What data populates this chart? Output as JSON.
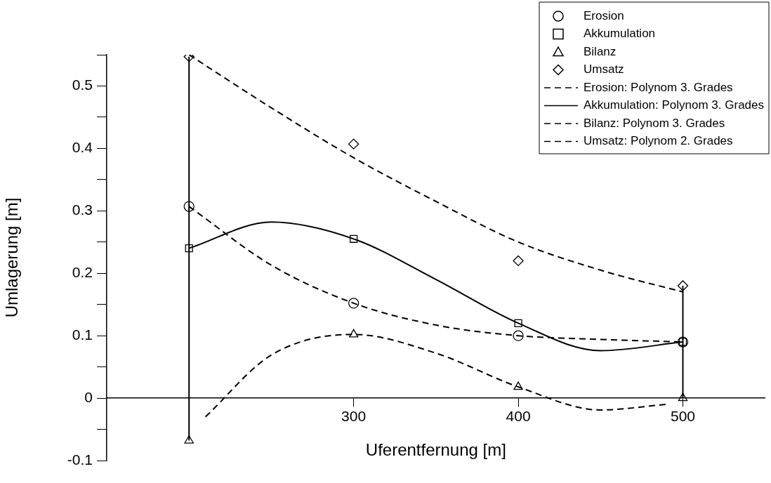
{
  "chart_data": {
    "type": "scatter",
    "xlabel": "Uferentfernung [m]",
    "ylabel": "Umlagerung [m]",
    "xlim": [
      150,
      550
    ],
    "xticks": [
      300,
      400,
      500
    ],
    "ylim": [
      -0.1,
      0.55
    ],
    "yticks": [
      -0.1,
      {
        "value": -0.05,
        "label": null
      },
      0,
      {
        "value": 0.05,
        "label": null
      },
      0.1,
      {
        "value": 0.15,
        "label": null
      },
      0.2,
      {
        "value": 0.25,
        "label": null
      },
      0.3,
      {
        "value": 0.35,
        "label": null
      },
      0.4,
      {
        "value": 0.45,
        "label": null
      },
      0.5,
      {
        "value": 0.55,
        "label": null
      }
    ],
    "grid": false,
    "legend": "top right",
    "series": [
      {
        "name": "Erosion",
        "type": "scatter",
        "marker": "circle",
        "color": "#000000",
        "x": [
          200,
          300,
          400,
          500
        ],
        "values": [
          0.307,
          0.152,
          0.1,
          0.09
        ]
      },
      {
        "name": "Akkumulation",
        "type": "scatter",
        "marker": "square",
        "color": "#000000",
        "x": [
          200,
          300,
          400,
          500
        ],
        "values": [
          0.24,
          0.255,
          0.12,
          0.09
        ]
      },
      {
        "name": "Bilanz",
        "type": "scatter",
        "marker": "triangle",
        "color": "#000000",
        "x": [
          200,
          300,
          400,
          500
        ],
        "values": [
          -0.068,
          0.102,
          0.018,
          0
        ]
      },
      {
        "name": "Umsatz",
        "type": "scatter",
        "marker": "diamond",
        "color": "#000000",
        "x": [
          200,
          300,
          400,
          500
        ],
        "values": [
          0.547,
          0.407,
          0.22,
          0.18
        ]
      },
      {
        "name": "Erosion: Polynom 3. Grades",
        "type": "line",
        "marker": "none",
        "line_style": "dashed",
        "color": "#000000",
        "x": [
          200,
          250,
          300,
          350,
          400,
          450,
          500
        ],
        "values": [
          0.307,
          0.213,
          0.152,
          0.117,
          0.1,
          0.094,
          0.09
        ]
      },
      {
        "name": "Akkumulation: Polynom 3. Grades",
        "type": "line",
        "marker": "none",
        "line_style": "solid",
        "color": "#000000",
        "x": [
          200,
          250,
          300,
          350,
          400,
          450,
          500
        ],
        "values": [
          0.24,
          0.282,
          0.255,
          0.19,
          0.12,
          0.076,
          0.09
        ]
      },
      {
        "name": "Bilanz: Polynom 3. Grades",
        "type": "line",
        "marker": "none",
        "line_style": "dashed",
        "color": "#000000",
        "x": [
          210,
          250,
          300,
          350,
          400,
          450,
          490
        ],
        "values": [
          -0.03,
          0.069,
          0.102,
          0.072,
          0.018,
          -0.019,
          -0.01
        ]
      },
      {
        "name": "Umsatz: Polynom 2. Grades",
        "type": "line",
        "marker": "none",
        "line_style": "dashed",
        "color": "#000000",
        "x": [
          200,
          250,
          300,
          350,
          400,
          450,
          500
        ],
        "values": [
          0.55,
          0.465,
          0.385,
          0.315,
          0.25,
          0.205,
          0.17
        ]
      },
      {
        "type": "line",
        "marker": "none",
        "line_style": "solid",
        "color": "#000000",
        "x": [
          200,
          200
        ],
        "values": [
          -0.068,
          0.547
        ]
      },
      {
        "type": "line",
        "marker": "none",
        "line_style": "solid",
        "color": "#000000",
        "x": [
          500,
          500
        ],
        "values": [
          0,
          0.18
        ]
      }
    ]
  }
}
